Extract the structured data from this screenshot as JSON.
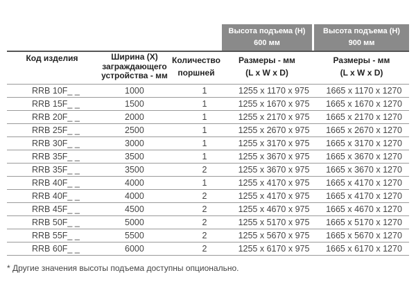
{
  "group_headers": [
    {
      "line1": "Высота подъема (H)",
      "line2": "600 мм"
    },
    {
      "line1": "Высота подъема (H)",
      "line2": "900 мм"
    }
  ],
  "columns": [
    {
      "lines": [
        "Код изделия"
      ]
    },
    {
      "lines": [
        "Ширина (X)",
        "заграждающего",
        "устройства - мм"
      ]
    },
    {
      "lines": [
        "Количество",
        "поршней"
      ]
    },
    {
      "lines": [
        "Размеры - мм",
        "(L x W x D)"
      ]
    },
    {
      "lines": [
        "Размеры - мм",
        "(L x W x D)"
      ]
    }
  ],
  "rows": [
    [
      "RRB 10F_ _",
      "1000",
      "1",
      "1255 x 1170 x 975",
      "1665 x 1170 x 1270"
    ],
    [
      "RRB 15F_ _",
      "1500",
      "1",
      "1255 x 1670 x 975",
      "1665 x 1670 x 1270"
    ],
    [
      "RRB 20F_ _",
      "2000",
      "1",
      "1255 x 2170 x 975",
      "1665 x 2170 x 1270"
    ],
    [
      "RRB 25F_ _",
      "2500",
      "1",
      "1255 x 2670 x 975",
      "1665 x 2670 x 1270"
    ],
    [
      "RRB 30F_ _",
      "3000",
      "1",
      "1255 x 3170 x 975",
      "1665 x 3170 x 1270"
    ],
    [
      "RRB 35F_ _",
      "3500",
      "1",
      "1255 x 3670 x 975",
      "1665 x 3670 x 1270"
    ],
    [
      "RRB 35F_ _",
      "3500",
      "2",
      "1255 x 3670 x 975",
      "1665 x 3670 x 1270"
    ],
    [
      "RRB 40F_ _",
      "4000",
      "1",
      "1255 x 4170 x 975",
      "1665 x 4170 x 1270"
    ],
    [
      "RRB 40F_ _",
      "4000",
      "2",
      "1255 x 4170 x 975",
      "1665 x 4170 x 1270"
    ],
    [
      "RRB 45F_ _",
      "4500",
      "2",
      "1255 x 4670 x 975",
      "1665 x 4670 x 1270"
    ],
    [
      "RRB 50F_ _",
      "5000",
      "2",
      "1255 x 5170 x 975",
      "1665 x 5170 x 1270"
    ],
    [
      "RRB 55F_ _",
      "5500",
      "2",
      "1255 x 5670 x 975",
      "1665 x 5670 x 1270"
    ],
    [
      "RRB 60F_ _",
      "6000",
      "2",
      "1255 x 6170 x 975",
      "1665 x 6170 x 1270"
    ]
  ],
  "footnote": "* Другие значения высоты подъема доступны опционально.",
  "colors": {
    "group_header_bg": "#8a8a8a",
    "rule": "#555555"
  }
}
